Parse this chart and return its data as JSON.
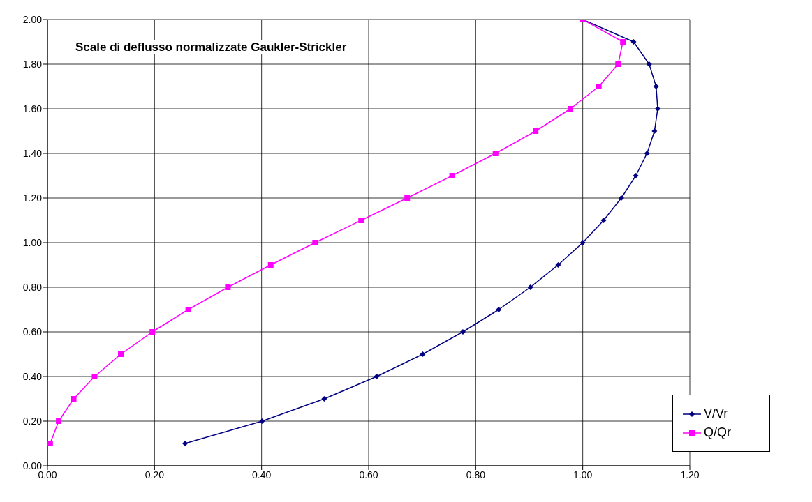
{
  "chart_data": {
    "type": "line",
    "title": "Scale di deflusso normalizzate Gaukler-Strickler",
    "series": [
      {
        "name": "V/Vr",
        "color": "#000080",
        "marker": "diamond",
        "x": [
          0.257,
          0.401,
          0.517,
          0.615,
          0.701,
          0.776,
          0.843,
          0.902,
          0.954,
          1.0,
          1.039,
          1.072,
          1.099,
          1.12,
          1.134,
          1.14,
          1.137,
          1.124,
          1.095,
          1.0
        ],
        "values": [
          0.1,
          0.2,
          0.3,
          0.4,
          0.5,
          0.6,
          0.7,
          0.8,
          0.9,
          1.0,
          1.1,
          1.2,
          1.3,
          1.4,
          1.5,
          1.6,
          1.7,
          1.8,
          1.9,
          2.0
        ]
      },
      {
        "name": "Q/Qr",
        "color": "#ff00ff",
        "marker": "square",
        "x": [
          0.005,
          0.021,
          0.049,
          0.088,
          0.137,
          0.196,
          0.263,
          0.337,
          0.417,
          0.5,
          0.586,
          0.672,
          0.756,
          0.837,
          0.912,
          0.977,
          1.03,
          1.066,
          1.075,
          1.0
        ],
        "values": [
          0.1,
          0.2,
          0.3,
          0.4,
          0.5,
          0.6,
          0.7,
          0.8,
          0.9,
          1.0,
          1.1,
          1.2,
          1.3,
          1.4,
          1.5,
          1.6,
          1.7,
          1.8,
          1.9,
          2.0
        ]
      }
    ],
    "xlim": [
      0,
      1.2
    ],
    "xticks": [
      {
        "value": 0,
        "label": "0.00"
      },
      {
        "value": 0.2,
        "label": "0.20"
      },
      {
        "value": 0.4,
        "label": "0.40"
      },
      {
        "value": 0.6,
        "label": "0.60"
      },
      {
        "value": 0.8,
        "label": "0.80"
      },
      {
        "value": 1,
        "label": "1.00"
      },
      {
        "value": 1.2,
        "label": "1.20"
      }
    ],
    "ylim": [
      0,
      2
    ],
    "yticks": [
      {
        "value": 0,
        "label": "0.00"
      },
      {
        "value": 0.2,
        "label": "0.20"
      },
      {
        "value": 0.4,
        "label": "0.40"
      },
      {
        "value": 0.6,
        "label": "0.60"
      },
      {
        "value": 0.8,
        "label": "0.80"
      },
      {
        "value": 1,
        "label": "1.00"
      },
      {
        "value": 1.2,
        "label": "1.20"
      },
      {
        "value": 1.4,
        "label": "1.40"
      },
      {
        "value": 1.6,
        "label": "1.60"
      },
      {
        "value": 1.8,
        "label": "1.80"
      },
      {
        "value": 2,
        "label": "2.00"
      }
    ],
    "grid": true,
    "legend": "bottom right",
    "line_style": "solid"
  }
}
